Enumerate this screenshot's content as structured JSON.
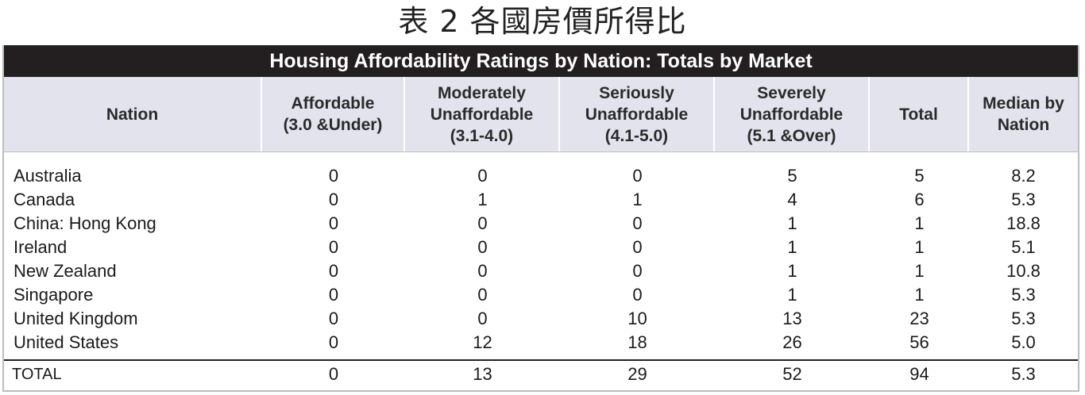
{
  "caption": "表 2 各國房價所得比",
  "table": {
    "title": "Housing Affordability Ratings by Nation: Totals by Market",
    "headers": [
      {
        "line1": "Nation",
        "line2": "",
        "line3": ""
      },
      {
        "line1": "Affordable",
        "line2": "(3.0 &Under)",
        "line3": ""
      },
      {
        "line1": "Moderately",
        "line2": "Unaffordable",
        "line3": "(3.1-4.0)"
      },
      {
        "line1": "Seriously",
        "line2": "Unaffordable",
        "line3": "(4.1-5.0)"
      },
      {
        "line1": "Severely",
        "line2": "Unaffordable",
        "line3": "(5.1 &Over)"
      },
      {
        "line1": "Total",
        "line2": "",
        "line3": ""
      },
      {
        "line1": "Median by",
        "line2": "Nation",
        "line3": ""
      }
    ],
    "rows": [
      [
        "Australia",
        "0",
        "0",
        "0",
        "5",
        "5",
        "8.2"
      ],
      [
        "Canada",
        "0",
        "1",
        "1",
        "4",
        "6",
        "5.3"
      ],
      [
        "China: Hong Kong",
        "0",
        "0",
        "0",
        "1",
        "1",
        "18.8"
      ],
      [
        "Ireland",
        "0",
        "0",
        "0",
        "1",
        "1",
        "5.1"
      ],
      [
        "New Zealand",
        "0",
        "0",
        "0",
        "1",
        "1",
        "10.8"
      ],
      [
        "Singapore",
        "0",
        "0",
        "0",
        "1",
        "1",
        "5.3"
      ],
      [
        "United Kingdom",
        "0",
        "0",
        "10",
        "13",
        "23",
        "5.3"
      ],
      [
        "United States",
        "0",
        "12",
        "18",
        "26",
        "56",
        "5.0"
      ]
    ],
    "total_row": [
      "TOTAL",
      "0",
      "13",
      "29",
      "52",
      "94",
      "5.3"
    ]
  },
  "colors": {
    "title_bar": "#231f20",
    "header_bg": "#e3e3ee"
  }
}
